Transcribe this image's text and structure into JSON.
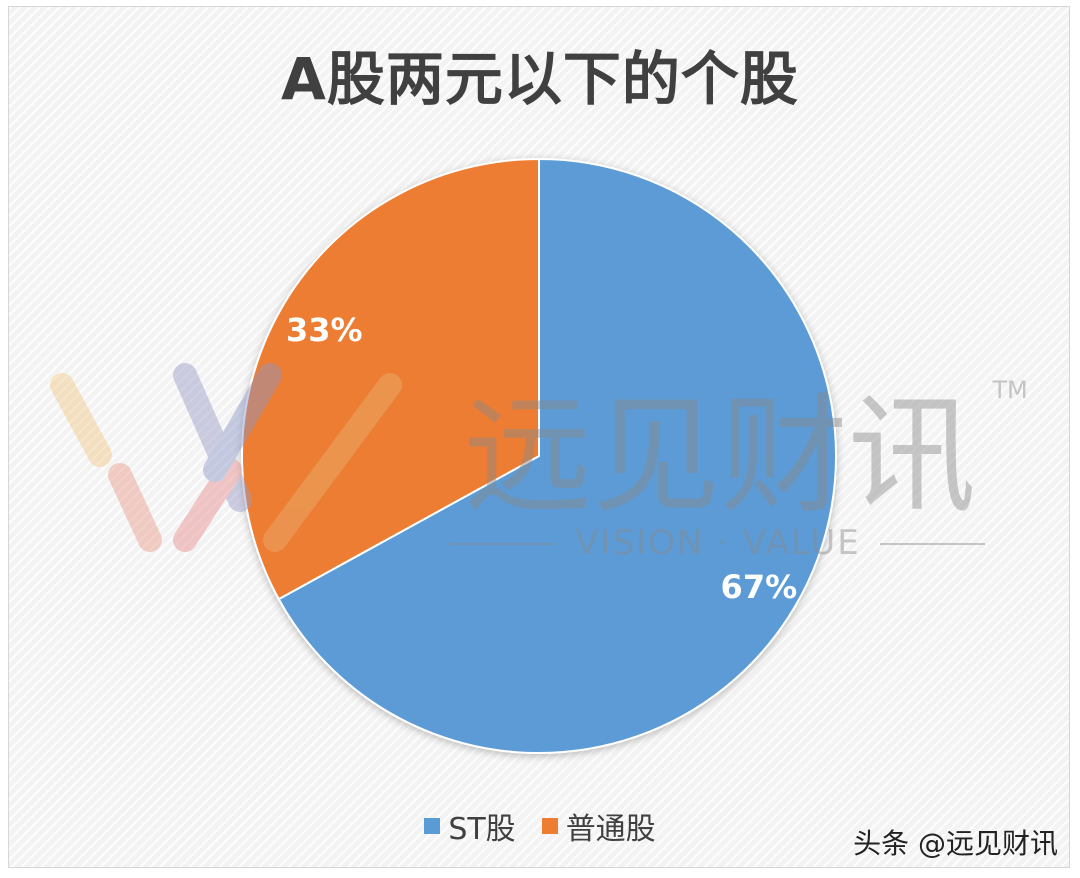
{
  "title": "A股两元以下的个股",
  "watermark": {
    "brand_cn": "远见财讯",
    "brand_en": "VISION · VALUE",
    "trademark": "TM"
  },
  "credit": "头条 @远见财讯",
  "chart_data": {
    "type": "pie",
    "title": "A股两元以下的个股",
    "legend_position": "bottom",
    "start_angle_deg": 0,
    "direction": "clockwise",
    "slices": [
      {
        "name": "ST股",
        "value": 67,
        "label": "67%",
        "color": "#5b9bd5"
      },
      {
        "name": "普通股",
        "value": 33,
        "label": "33%",
        "color": "#ed7d31"
      }
    ]
  }
}
